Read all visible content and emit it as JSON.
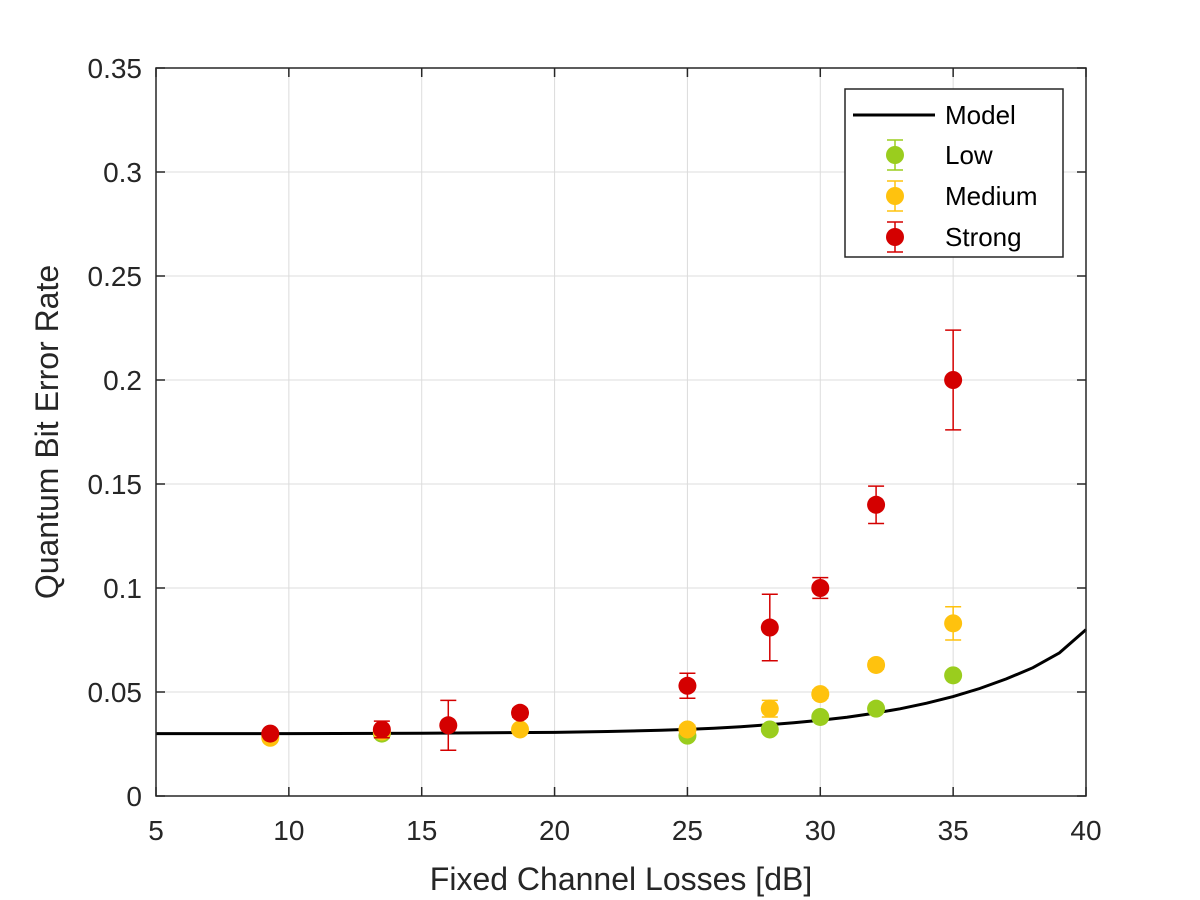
{
  "chart_data": {
    "type": "scatter",
    "title": "",
    "xlabel": "Fixed Channel Losses [dB]",
    "ylabel": "Quantum Bit Error Rate",
    "xlim": [
      5,
      40
    ],
    "ylim": [
      0,
      0.35
    ],
    "xticks": [
      5,
      10,
      15,
      20,
      25,
      30,
      35,
      40
    ],
    "yticks": [
      0,
      0.05,
      0.1,
      0.15,
      0.2,
      0.25,
      0.3,
      0.35
    ],
    "xtick_labels": [
      "5",
      "10",
      "15",
      "20",
      "25",
      "30",
      "35",
      "40"
    ],
    "ytick_labels": [
      "0",
      "0.05",
      "0.1",
      "0.15",
      "0.2",
      "0.25",
      "0.3",
      "0.35"
    ],
    "grid": true,
    "legend_position": "top-right",
    "model": {
      "name": "Model",
      "color": "#000000",
      "x": [
        5,
        10,
        15,
        20,
        22,
        24,
        25,
        26,
        27,
        28,
        29,
        30,
        31,
        32,
        33,
        34,
        35,
        36,
        37,
        38,
        39,
        40
      ],
      "y": [
        0.03,
        0.03,
        0.0302,
        0.0306,
        0.031,
        0.0316,
        0.032,
        0.0326,
        0.0333,
        0.0342,
        0.0352,
        0.0364,
        0.0379,
        0.0397,
        0.0419,
        0.0446,
        0.0478,
        0.0517,
        0.0563,
        0.0617,
        0.0688,
        0.08
      ]
    },
    "series": [
      {
        "name": "Low",
        "color": "#9ACD1E",
        "x": [
          9.3,
          13.5,
          25.0,
          28.1,
          30.0,
          32.1,
          35.0
        ],
        "y": [
          0.029,
          0.03,
          0.029,
          0.032,
          0.038,
          0.042,
          0.058
        ],
        "err": [
          0.001,
          0.001,
          0.001,
          0.001,
          0.001,
          0.001,
          0.001
        ]
      },
      {
        "name": "Medium",
        "color": "#FFC20E",
        "x": [
          9.3,
          13.5,
          18.7,
          25.0,
          28.1,
          30.0,
          32.1,
          35.0
        ],
        "y": [
          0.028,
          0.031,
          0.032,
          0.032,
          0.042,
          0.049,
          0.063,
          0.083
        ],
        "err": [
          0.001,
          0.001,
          0.001,
          0.002,
          0.004,
          0.002,
          0.002,
          0.008
        ]
      },
      {
        "name": "Strong",
        "color": "#D40000",
        "x": [
          9.3,
          13.5,
          16.0,
          18.7,
          25.0,
          28.1,
          30.0,
          32.1,
          35.0
        ],
        "y": [
          0.03,
          0.032,
          0.034,
          0.04,
          0.053,
          0.081,
          0.1,
          0.14,
          0.2
        ],
        "err": [
          0.001,
          0.004,
          0.012,
          0.002,
          0.006,
          0.016,
          0.005,
          0.009,
          0.024
        ]
      }
    ]
  }
}
